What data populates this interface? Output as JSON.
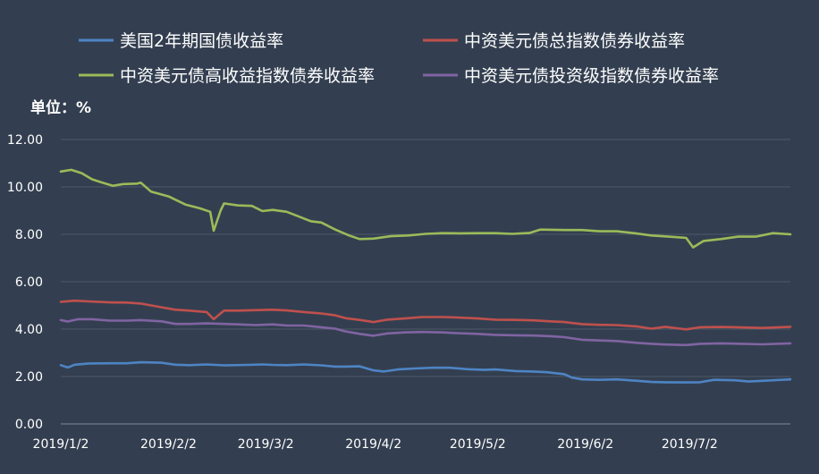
{
  "chart_data": {
    "type": "line",
    "unit_label": "单位：%",
    "ylim": [
      0,
      12
    ],
    "y_ticks": [
      "0.00",
      "2.00",
      "4.00",
      "6.00",
      "8.00",
      "10.00",
      "12.00"
    ],
    "x_ticks": [
      "2019/1/2",
      "2019/2/2",
      "2019/3/2",
      "2019/4/2",
      "2019/5/2",
      "2019/6/2",
      "2019/7/2"
    ],
    "x_tick_dates": [
      "2019-01-02",
      "2019-02-02",
      "2019-03-02",
      "2019-04-02",
      "2019-05-02",
      "2019-06-02",
      "2019-07-02"
    ],
    "x_range": [
      "2019-01-02",
      "2019-07-31"
    ],
    "grid": true,
    "legend_position": "top",
    "background": "#333f50",
    "series": [
      {
        "name": "美国2年期国债收益率",
        "color": "#4e84c4",
        "points": [
          [
            "2019-01-02",
            2.48
          ],
          [
            "2019-01-04",
            2.38
          ],
          [
            "2019-01-06",
            2.5
          ],
          [
            "2019-01-10",
            2.55
          ],
          [
            "2019-01-16",
            2.56
          ],
          [
            "2019-01-21",
            2.56
          ],
          [
            "2019-01-25",
            2.6
          ],
          [
            "2019-01-31",
            2.58
          ],
          [
            "2019-02-04",
            2.5
          ],
          [
            "2019-02-08",
            2.48
          ],
          [
            "2019-02-13",
            2.51
          ],
          [
            "2019-02-18",
            2.47
          ],
          [
            "2019-02-25",
            2.49
          ],
          [
            "2019-03-01",
            2.51
          ],
          [
            "2019-03-04",
            2.49
          ],
          [
            "2019-03-08",
            2.48
          ],
          [
            "2019-03-13",
            2.51
          ],
          [
            "2019-03-18",
            2.47
          ],
          [
            "2019-03-22",
            2.42
          ],
          [
            "2019-03-25",
            2.42
          ],
          [
            "2019-03-29",
            2.43
          ],
          [
            "2019-04-02",
            2.26
          ],
          [
            "2019-04-05",
            2.21
          ],
          [
            "2019-04-09",
            2.3
          ],
          [
            "2019-04-14",
            2.34
          ],
          [
            "2019-04-19",
            2.37
          ],
          [
            "2019-04-24",
            2.37
          ],
          [
            "2019-04-29",
            2.31
          ],
          [
            "2019-05-04",
            2.28
          ],
          [
            "2019-05-07",
            2.3
          ],
          [
            "2019-05-13",
            2.23
          ],
          [
            "2019-05-18",
            2.21
          ],
          [
            "2019-05-22",
            2.18
          ],
          [
            "2019-05-27",
            2.1
          ],
          [
            "2019-05-29",
            1.96
          ],
          [
            "2019-06-01",
            1.88
          ],
          [
            "2019-06-06",
            1.86
          ],
          [
            "2019-06-11",
            1.88
          ],
          [
            "2019-06-17",
            1.82
          ],
          [
            "2019-06-21",
            1.77
          ],
          [
            "2019-06-25",
            1.76
          ],
          [
            "2019-07-01",
            1.75
          ],
          [
            "2019-07-05",
            1.76
          ],
          [
            "2019-07-09",
            1.86
          ],
          [
            "2019-07-15",
            1.84
          ],
          [
            "2019-07-19",
            1.79
          ],
          [
            "2019-07-23",
            1.82
          ],
          [
            "2019-07-27",
            1.85
          ],
          [
            "2019-07-31",
            1.88
          ]
        ]
      },
      {
        "name": "中资美元债总指数债券收益率",
        "color": "#c0504d",
        "points": [
          [
            "2019-01-02",
            5.15
          ],
          [
            "2019-01-06",
            5.2
          ],
          [
            "2019-01-10",
            5.17
          ],
          [
            "2019-01-16",
            5.13
          ],
          [
            "2019-01-21",
            5.12
          ],
          [
            "2019-01-25",
            5.08
          ],
          [
            "2019-01-31",
            4.92
          ],
          [
            "2019-02-04",
            4.82
          ],
          [
            "2019-02-08",
            4.78
          ],
          [
            "2019-02-13",
            4.72
          ],
          [
            "2019-02-15",
            4.42
          ],
          [
            "2019-02-18",
            4.78
          ],
          [
            "2019-02-22",
            4.78
          ],
          [
            "2019-02-27",
            4.8
          ],
          [
            "2019-03-04",
            4.82
          ],
          [
            "2019-03-08",
            4.79
          ],
          [
            "2019-03-13",
            4.72
          ],
          [
            "2019-03-18",
            4.66
          ],
          [
            "2019-03-22",
            4.58
          ],
          [
            "2019-03-25",
            4.46
          ],
          [
            "2019-03-29",
            4.39
          ],
          [
            "2019-04-02",
            4.3
          ],
          [
            "2019-04-06",
            4.4
          ],
          [
            "2019-04-11",
            4.45
          ],
          [
            "2019-04-16",
            4.51
          ],
          [
            "2019-04-22",
            4.51
          ],
          [
            "2019-04-26",
            4.49
          ],
          [
            "2019-05-02",
            4.45
          ],
          [
            "2019-05-07",
            4.4
          ],
          [
            "2019-05-13",
            4.39
          ],
          [
            "2019-05-18",
            4.37
          ],
          [
            "2019-05-23",
            4.33
          ],
          [
            "2019-05-27",
            4.3
          ],
          [
            "2019-06-01",
            4.21
          ],
          [
            "2019-06-06",
            4.18
          ],
          [
            "2019-06-11",
            4.17
          ],
          [
            "2019-06-17",
            4.11
          ],
          [
            "2019-06-21",
            4.02
          ],
          [
            "2019-06-25",
            4.1
          ],
          [
            "2019-07-01",
            3.99
          ],
          [
            "2019-07-05",
            4.08
          ],
          [
            "2019-07-11",
            4.09
          ],
          [
            "2019-07-17",
            4.07
          ],
          [
            "2019-07-23",
            4.05
          ],
          [
            "2019-07-31",
            4.1
          ]
        ]
      },
      {
        "name": "中资美元债高收益指数债券收益率",
        "color": "#9bbb59",
        "points": [
          [
            "2019-01-02",
            10.65
          ],
          [
            "2019-01-05",
            10.72
          ],
          [
            "2019-01-08",
            10.58
          ],
          [
            "2019-01-11",
            10.32
          ],
          [
            "2019-01-14",
            10.18
          ],
          [
            "2019-01-17",
            10.05
          ],
          [
            "2019-01-20",
            10.12
          ],
          [
            "2019-01-24",
            10.14
          ],
          [
            "2019-01-25",
            10.18
          ],
          [
            "2019-01-28",
            9.8
          ],
          [
            "2019-02-02",
            9.6
          ],
          [
            "2019-02-07",
            9.25
          ],
          [
            "2019-02-11",
            9.1
          ],
          [
            "2019-02-14",
            8.95
          ],
          [
            "2019-02-15",
            8.15
          ],
          [
            "2019-02-17",
            9.0
          ],
          [
            "2019-02-18",
            9.3
          ],
          [
            "2019-02-22",
            9.22
          ],
          [
            "2019-02-26",
            9.2
          ],
          [
            "2019-03-01",
            8.98
          ],
          [
            "2019-03-04",
            9.03
          ],
          [
            "2019-03-08",
            8.95
          ],
          [
            "2019-03-11",
            8.78
          ],
          [
            "2019-03-15",
            8.55
          ],
          [
            "2019-03-18",
            8.5
          ],
          [
            "2019-03-22",
            8.2
          ],
          [
            "2019-03-26",
            7.95
          ],
          [
            "2019-03-29",
            7.8
          ],
          [
            "2019-04-02",
            7.82
          ],
          [
            "2019-04-07",
            7.92
          ],
          [
            "2019-04-12",
            7.95
          ],
          [
            "2019-04-17",
            8.02
          ],
          [
            "2019-04-22",
            8.05
          ],
          [
            "2019-04-27",
            8.04
          ],
          [
            "2019-05-02",
            8.05
          ],
          [
            "2019-05-07",
            8.05
          ],
          [
            "2019-05-12",
            8.02
          ],
          [
            "2019-05-17",
            8.06
          ],
          [
            "2019-05-20",
            8.2
          ],
          [
            "2019-05-27",
            8.18
          ],
          [
            "2019-06-01",
            8.18
          ],
          [
            "2019-06-06",
            8.13
          ],
          [
            "2019-06-11",
            8.13
          ],
          [
            "2019-06-16",
            8.05
          ],
          [
            "2019-06-21",
            7.95
          ],
          [
            "2019-06-26",
            7.9
          ],
          [
            "2019-07-01",
            7.85
          ],
          [
            "2019-07-03",
            7.45
          ],
          [
            "2019-07-06",
            7.72
          ],
          [
            "2019-07-11",
            7.8
          ],
          [
            "2019-07-16",
            7.9
          ],
          [
            "2019-07-21",
            7.9
          ],
          [
            "2019-07-26",
            8.05
          ],
          [
            "2019-07-31",
            8.0
          ]
        ]
      },
      {
        "name": "中资美元债投资级指数债券收益率",
        "color": "#8064a2",
        "points": [
          [
            "2019-01-02",
            4.38
          ],
          [
            "2019-01-04",
            4.32
          ],
          [
            "2019-01-07",
            4.42
          ],
          [
            "2019-01-11",
            4.42
          ],
          [
            "2019-01-16",
            4.36
          ],
          [
            "2019-01-21",
            4.36
          ],
          [
            "2019-01-25",
            4.38
          ],
          [
            "2019-01-31",
            4.33
          ],
          [
            "2019-02-04",
            4.22
          ],
          [
            "2019-02-08",
            4.22
          ],
          [
            "2019-02-13",
            4.24
          ],
          [
            "2019-02-18",
            4.22
          ],
          [
            "2019-02-22",
            4.2
          ],
          [
            "2019-02-27",
            4.17
          ],
          [
            "2019-03-04",
            4.2
          ],
          [
            "2019-03-08",
            4.15
          ],
          [
            "2019-03-13",
            4.15
          ],
          [
            "2019-03-18",
            4.08
          ],
          [
            "2019-03-22",
            4.02
          ],
          [
            "2019-03-25",
            3.9
          ],
          [
            "2019-03-29",
            3.8
          ],
          [
            "2019-04-02",
            3.72
          ],
          [
            "2019-04-06",
            3.82
          ],
          [
            "2019-04-11",
            3.86
          ],
          [
            "2019-04-16",
            3.88
          ],
          [
            "2019-04-22",
            3.86
          ],
          [
            "2019-04-26",
            3.83
          ],
          [
            "2019-05-02",
            3.8
          ],
          [
            "2019-05-07",
            3.76
          ],
          [
            "2019-05-13",
            3.74
          ],
          [
            "2019-05-18",
            3.73
          ],
          [
            "2019-05-23",
            3.7
          ],
          [
            "2019-05-27",
            3.66
          ],
          [
            "2019-06-01",
            3.55
          ],
          [
            "2019-06-06",
            3.52
          ],
          [
            "2019-06-11",
            3.5
          ],
          [
            "2019-06-17",
            3.42
          ],
          [
            "2019-06-21",
            3.38
          ],
          [
            "2019-06-25",
            3.35
          ],
          [
            "2019-07-01",
            3.33
          ],
          [
            "2019-07-05",
            3.38
          ],
          [
            "2019-07-11",
            3.4
          ],
          [
            "2019-07-17",
            3.38
          ],
          [
            "2019-07-23",
            3.36
          ],
          [
            "2019-07-31",
            3.4
          ]
        ]
      }
    ]
  }
}
